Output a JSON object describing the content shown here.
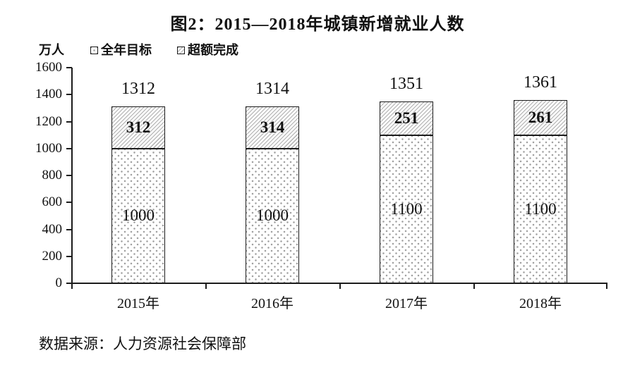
{
  "title": "图2：2015—2018年城镇新增就业人数",
  "unit_label": "万人",
  "legend": [
    {
      "label": "全年目标",
      "pattern": "dots"
    },
    {
      "label": "超额完成",
      "pattern": "hatch"
    }
  ],
  "chart_data": {
    "type": "bar",
    "stacked": true,
    "title": "图2：2015—2018年城镇新增就业人数",
    "categories": [
      "2015年",
      "2016年",
      "2017年",
      "2018年"
    ],
    "series": [
      {
        "name": "全年目标",
        "pattern": "dots",
        "values": [
          1000,
          1000,
          1100,
          1100
        ]
      },
      {
        "name": "超额完成",
        "pattern": "hatch",
        "values": [
          312,
          314,
          251,
          261
        ]
      }
    ],
    "totals": [
      1312,
      1314,
      1351,
      1361
    ],
    "ylabel": "万人",
    "ylim": [
      0,
      1600
    ],
    "yticks": [
      0,
      200,
      400,
      600,
      800,
      1000,
      1200,
      1400,
      1600
    ],
    "grid": false,
    "legend_position": "top-left"
  },
  "source": "数据来源：人力资源社会保障部",
  "colors": {
    "background": "#ffffff",
    "axis": "#1c1c1c",
    "text": "#111111",
    "bar_border": "#1c1c1c",
    "hatch_line": "#b0b0b0",
    "dot": "#9e9e9e"
  }
}
